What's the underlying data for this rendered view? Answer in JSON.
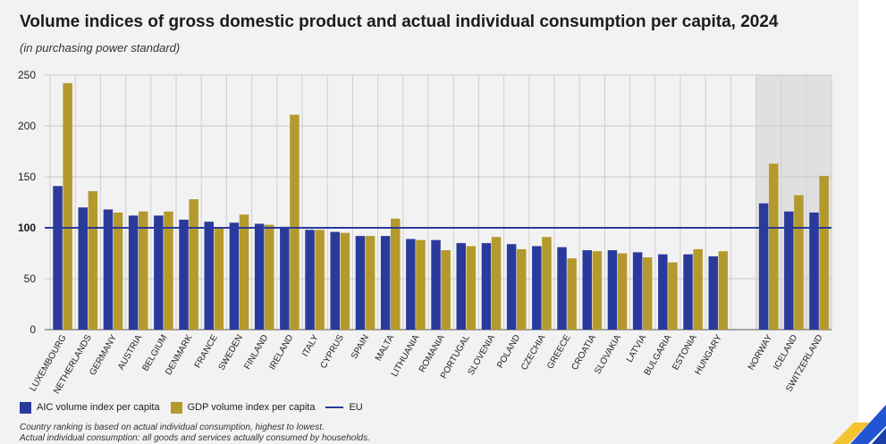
{
  "chart_data": {
    "type": "bar",
    "title": "Volume indices of gross domestic product and actual individual consumption per capita, 2024",
    "subtitle": "(in purchasing power standard)",
    "ylim": [
      0,
      250
    ],
    "yticks": [
      0,
      50,
      100,
      150,
      200,
      250
    ],
    "categories": [
      "LUXEMBOURG",
      "NETHERLANDS",
      "GERMANY",
      "AUSTRIA",
      "BELGIUM",
      "DENMARK",
      "FRANCE",
      "SWEDEN",
      "FINLAND",
      "IRELAND",
      "ITALY",
      "CYPRUS",
      "SPAIN",
      "MALTA",
      "LITHUANIA",
      "ROMANIA",
      "PORTUGAL",
      "SLOVENIA",
      "POLAND",
      "CZECHIA",
      "GREECE",
      "CROATIA",
      "SLOVAKIA",
      "LATVIA",
      "BULGARIA",
      "ESTONIA",
      "HUNGARY",
      "NORWAY",
      "ICELAND",
      "SWITZERLAND"
    ],
    "series": [
      {
        "name": "AIC volume index per capita",
        "color": "#2a3a9c",
        "values": [
          141,
          120,
          118,
          112,
          112,
          108,
          106,
          105,
          104,
          101,
          98,
          96,
          92,
          92,
          89,
          88,
          85,
          85,
          84,
          82,
          81,
          78,
          78,
          76,
          74,
          74,
          72,
          124,
          116,
          115
        ]
      },
      {
        "name": "GDP volume index per capita",
        "color": "#b49a2d",
        "values": [
          242,
          136,
          115,
          116,
          116,
          128,
          100,
          113,
          103,
          211,
          98,
          95,
          92,
          109,
          88,
          78,
          82,
          91,
          79,
          91,
          70,
          77,
          75,
          71,
          66,
          79,
          77,
          163,
          132,
          151
        ]
      }
    ],
    "reference": {
      "name": "EU",
      "value": 100,
      "color": "#2a3a9c"
    },
    "highlighted_categories": [
      "NORWAY",
      "ICELAND",
      "SWITZERLAND"
    ],
    "notes": [
      "Country ranking is based on actual individual consumption, highest to lowest.",
      "Actual individual consumption: all goods and services actually consumed by households."
    ]
  }
}
